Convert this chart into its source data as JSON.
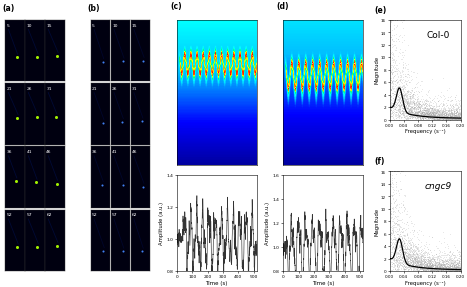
{
  "panel_labels": [
    "(a)",
    "(b)",
    "(c)",
    "(d)",
    "(e)",
    "(f)"
  ],
  "grid_labels_a": [
    "5",
    "10",
    "15",
    "21",
    "26",
    "31",
    "36",
    "41",
    "46",
    "52",
    "57",
    "62"
  ],
  "grid_labels_b": [
    "5",
    "10",
    "15",
    "21",
    "26",
    "31",
    "36",
    "41",
    "46",
    "52",
    "57",
    "62"
  ],
  "col0_label": "Col-0",
  "cngc9_label": "cngc9",
  "xlabel_time": "Time (s)",
  "xlabel_freq": "Frequency (s⁻¹)",
  "ylabel_amp": "Amplitude (a.u.)",
  "ylabel_mag": "Magnitude",
  "time_xlim": [
    0,
    520
  ],
  "time_xticks": [
    0,
    100,
    200,
    300,
    400,
    500
  ],
  "freq_xlim": [
    0.0,
    0.2
  ],
  "freq_xticks": [
    0.0,
    0.04,
    0.08,
    0.12,
    0.16,
    0.2
  ],
  "amp_c_ylim": [
    0.8,
    1.4
  ],
  "amp_c_yticks": [
    0.8,
    1.0,
    1.2,
    1.4
  ],
  "amp_d_ylim": [
    0.8,
    1.6
  ],
  "amp_d_yticks": [
    0.8,
    1.0,
    1.2,
    1.4,
    1.6
  ],
  "mag_ylim": [
    0,
    16
  ],
  "mag_yticks": [
    0,
    2,
    4,
    6,
    8,
    10,
    12,
    14,
    16
  ],
  "bg_color": "#ffffff",
  "microscopy_bg": "#000010",
  "line_color": "#333333",
  "scatter_color": "#aaaaaa",
  "curve_color": "#000000"
}
